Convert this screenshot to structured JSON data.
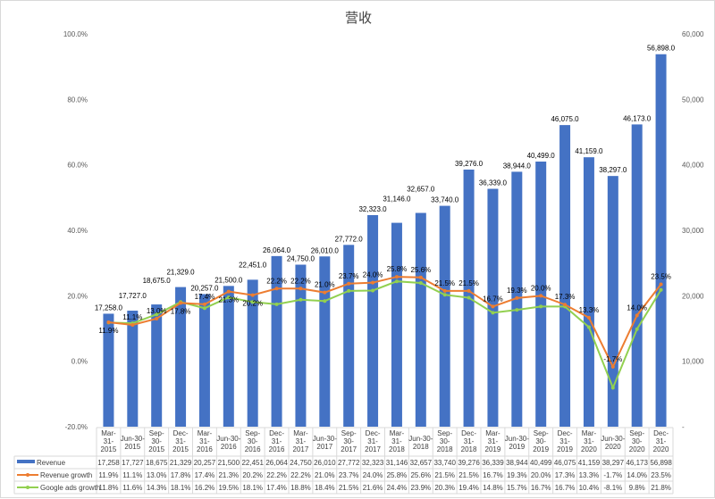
{
  "chart_data": {
    "type": "bar+line",
    "title": "营收",
    "categories": [
      "Mar-31-2015",
      "Jun-30-2015",
      "Sep-30-2015",
      "Dec-31-2015",
      "Mar-31-2016",
      "Jun-30-2016",
      "Sep-30-2016",
      "Dec-31-2016",
      "Mar-31-2017",
      "Jun-30-2017",
      "Sep-30-2017",
      "Dec-31-2017",
      "Mar-31-2018",
      "Jun-30-2018",
      "Sep-30-2018",
      "Dec-31-2018",
      "Mar-31-2019",
      "Jun-30-2019",
      "Sep-30-2019",
      "Dec-31-2019",
      "Mar-31-2020",
      "Jun-30-2020",
      "Sep-30-2020",
      "Dec-31-2020"
    ],
    "series": [
      {
        "name": "Revenue",
        "type": "bar",
        "axis": "right",
        "color": "#4472C4",
        "values": [
          17258,
          17727,
          18675,
          21329,
          20257,
          21500,
          22451,
          26064,
          24750,
          26010,
          27772,
          32323,
          31146,
          32657,
          33740,
          39276,
          36339,
          38944,
          40499,
          46075,
          41159,
          38297,
          46173,
          56898
        ]
      },
      {
        "name": "Revenue growth",
        "type": "line",
        "axis": "left",
        "color": "#ED7D31",
        "values": [
          11.9,
          11.1,
          13.0,
          17.8,
          17.4,
          21.3,
          20.2,
          22.2,
          22.2,
          21.0,
          23.7,
          24.0,
          25.8,
          25.6,
          21.5,
          21.5,
          16.7,
          19.3,
          20.0,
          17.3,
          13.3,
          -1.7,
          14.0,
          23.5
        ]
      },
      {
        "name": "Google ads growth",
        "type": "line",
        "axis": "left",
        "color": "#92D050",
        "values": [
          11.8,
          11.6,
          14.3,
          18.1,
          16.2,
          19.5,
          18.1,
          17.4,
          18.8,
          18.4,
          21.5,
          21.6,
          24.4,
          23.9,
          20.3,
          19.4,
          14.8,
          15.7,
          16.7,
          16.7,
          10.4,
          -8.1,
          9.8,
          21.8
        ]
      }
    ],
    "left_axis": {
      "range": [
        -20,
        100
      ],
      "ticks": [
        "-20.0%",
        "0.0%",
        "20.0%",
        "40.0%",
        "60.0%",
        "80.0%",
        "100.0%"
      ]
    },
    "right_axis": {
      "range": [
        0,
        60000
      ],
      "ticks": [
        "-",
        "10,000",
        "20,000",
        "30,000",
        "40,000",
        "50,000",
        "60,000"
      ]
    },
    "legend": "data-table-bottom"
  }
}
